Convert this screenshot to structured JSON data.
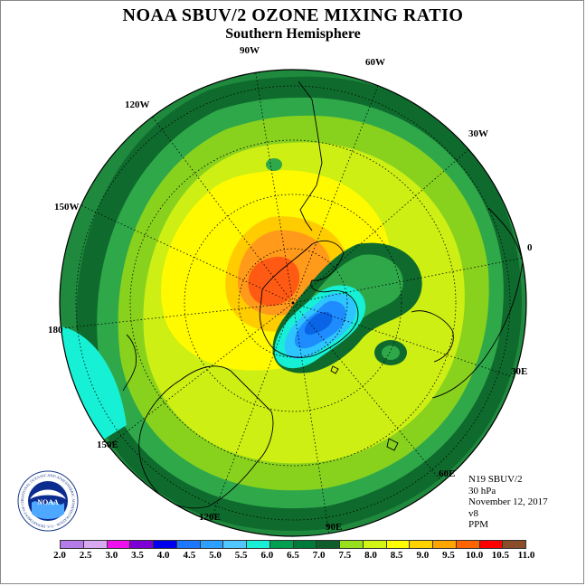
{
  "title": "NOAA SBUV/2 OZONE MIXING RATIO",
  "subtitle": "Southern Hemisphere",
  "longitude_labels": [
    "90W",
    "60W",
    "30W",
    "0",
    "30E",
    "60E",
    "90E",
    "120E",
    "150E",
    "180",
    "150W",
    "120W"
  ],
  "info": {
    "satellite": "N19 SBUV/2",
    "level": "30 hPa",
    "date": "November 12, 2017",
    "version": "v8",
    "units": "PPM"
  },
  "logo": {
    "text": "NOAA",
    "ring_text": "NATIONAL OCEANIC AND ATMOSPHERIC ADMINISTRATION · U.S. DEPARTMENT OF COMMERCE"
  },
  "colorbar": {
    "ticks": [
      "2.0",
      "2.5",
      "3.0",
      "3.5",
      "4.0",
      "4.5",
      "5.0",
      "5.5",
      "6.0",
      "6.5",
      "7.0",
      "7.5",
      "8.0",
      "8.5",
      "9.0",
      "9.5",
      "10.0",
      "10.5",
      "11.0"
    ],
    "colors": [
      "#b57be8",
      "#d8a8f0",
      "#ee11ee",
      "#7d00d6",
      "#0000ee",
      "#1e78ff",
      "#2da0ff",
      "#50c8ff",
      "#17f0d6",
      "#00a050",
      "#007a3a",
      "#0d5e2b",
      "#96e01e",
      "#d2f514",
      "#ffff00",
      "#ffd200",
      "#ffa500",
      "#ff6400",
      "#ff0000",
      "#8b4c2a"
    ]
  },
  "colors": {
    "background": "#ffffff",
    "outer_band": "#1f8a3e",
    "dark_band": "#0f6b2d",
    "mid_green": "#2fa84a",
    "light_green": "#88d21e",
    "yellow_green": "#cdef13",
    "yellow": "#fffa00",
    "gold": "#ffcc00",
    "orange": "#ff9a1a",
    "red_orange": "#ff5a14",
    "cyan": "#16f0d4",
    "light_blue": "#2ec4ff",
    "blue": "#1e8cff",
    "deep_blue": "#0a64e6"
  }
}
